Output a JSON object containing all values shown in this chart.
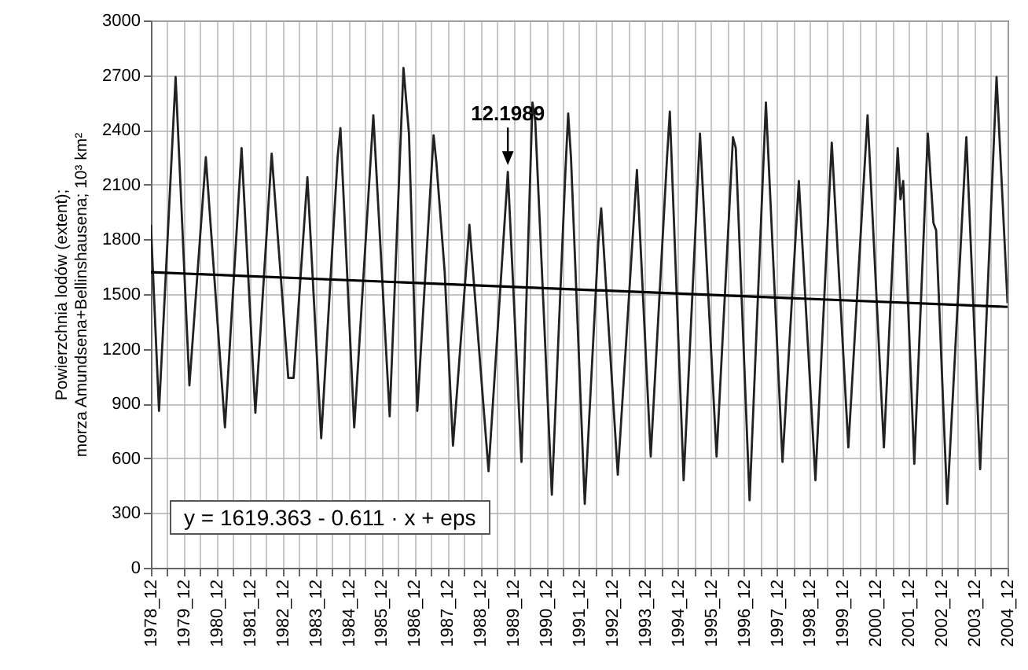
{
  "chart_data": {
    "type": "line",
    "ylabel": "Powierzchnia lodów (extent);\nmorza Amundsena+Bellinshausena; 10³ km²",
    "xlim": [
      "1978-12",
      "2004-12"
    ],
    "xticks": [
      {
        "value": "1978-12",
        "label": "1978_12"
      },
      {
        "value": "1979-06",
        "label": null
      },
      {
        "value": "1979-12",
        "label": "1979_12"
      },
      {
        "value": "1980-06",
        "label": null
      },
      {
        "value": "1980-12",
        "label": "1980_12"
      },
      {
        "value": "1981-06",
        "label": null
      },
      {
        "value": "1981-12",
        "label": "1981_12"
      },
      {
        "value": "1982-06",
        "label": null
      },
      {
        "value": "1982-12",
        "label": "1982_12"
      },
      {
        "value": "1983-06",
        "label": null
      },
      {
        "value": "1983-12",
        "label": "1983_12"
      },
      {
        "value": "1984-06",
        "label": null
      },
      {
        "value": "1984-12",
        "label": "1984_12"
      },
      {
        "value": "1985-06",
        "label": null
      },
      {
        "value": "1985-12",
        "label": "1985_12"
      },
      {
        "value": "1986-06",
        "label": null
      },
      {
        "value": "1986-12",
        "label": "1986_12"
      },
      {
        "value": "1987-06",
        "label": null
      },
      {
        "value": "1987-12",
        "label": "1987_12"
      },
      {
        "value": "1988-06",
        "label": null
      },
      {
        "value": "1988-12",
        "label": "1988_12"
      },
      {
        "value": "1989-06",
        "label": null
      },
      {
        "value": "1989-12",
        "label": "1989_12"
      },
      {
        "value": "1990-06",
        "label": null
      },
      {
        "value": "1990-12",
        "label": "1990_12"
      },
      {
        "value": "1991-06",
        "label": null
      },
      {
        "value": "1991-12",
        "label": "1991_12"
      },
      {
        "value": "1992-06",
        "label": null
      },
      {
        "value": "1992-12",
        "label": "1992_12"
      },
      {
        "value": "1993-06",
        "label": null
      },
      {
        "value": "1993-12",
        "label": "1993_12"
      },
      {
        "value": "1994-06",
        "label": null
      },
      {
        "value": "1994-12",
        "label": "1994_12"
      },
      {
        "value": "1995-06",
        "label": null
      },
      {
        "value": "1995-12",
        "label": "1995_12"
      },
      {
        "value": "1996-06",
        "label": null
      },
      {
        "value": "1996-12",
        "label": "1996_12"
      },
      {
        "value": "1997-06",
        "label": null
      },
      {
        "value": "1997-12",
        "label": "1997_12"
      },
      {
        "value": "1998-06",
        "label": null
      },
      {
        "value": "1998-12",
        "label": "1998_12"
      },
      {
        "value": "1999-06",
        "label": null
      },
      {
        "value": "1999-12",
        "label": "1999_12"
      },
      {
        "value": "2000-06",
        "label": null
      },
      {
        "value": "2000-12",
        "label": "2000_12"
      },
      {
        "value": "2001-06",
        "label": null
      },
      {
        "value": "2001-12",
        "label": "2001_12"
      },
      {
        "value": "2002-06",
        "label": null
      },
      {
        "value": "2002-12",
        "label": "2002_12"
      },
      {
        "value": "2003-06",
        "label": null
      },
      {
        "value": "2003-12",
        "label": "2003_12"
      },
      {
        "value": "2004-06",
        "label": null
      },
      {
        "value": "2004-12",
        "label": "2004_12"
      }
    ],
    "ylim": [
      0,
      3000
    ],
    "yticks": [
      0,
      300,
      600,
      900,
      1200,
      1500,
      1800,
      2100,
      2400,
      2700,
      3000
    ],
    "grid": true,
    "series": [
      {
        "color": "#222222",
        "x": [
          "1978-12",
          "1979-03",
          "1979-09",
          "1980-02",
          "1980-08",
          "1981-03",
          "1981-09",
          "1982-02",
          "1982-08",
          "1983-02",
          "1983-04",
          "1983-09",
          "1984-02",
          "1984-08",
          "1984-09",
          "1985-02",
          "1985-09",
          "1986-03",
          "1986-08",
          "1986-10",
          "1987-01",
          "1987-07",
          "1987-08",
          "1987-11",
          "1988-02",
          "1988-08",
          "1989-03",
          "1989-10",
          "1990-03",
          "1990-07",
          "1990-08",
          "1991-02",
          "1991-07",
          "1991-08",
          "1991-09",
          "1992-02",
          "1992-07",
          "1992-08",
          "1993-02",
          "1993-09",
          "1994-02",
          "1994-08",
          "1994-09",
          "1995-02",
          "1995-08",
          "1996-02",
          "1996-08",
          "1996-09",
          "1997-02",
          "1997-08",
          "1998-02",
          "1998-08",
          "1999-02",
          "1999-08",
          "2000-02",
          "2000-09",
          "2001-03",
          "2001-08",
          "2001-09",
          "2001-10",
          "2002-02",
          "2002-07",
          "2002-09",
          "2002-10",
          "2003-02",
          "2003-09",
          "2004-02",
          "2004-08",
          "2004-12"
        ],
        "values": [
          1880,
          860,
          2690,
          1000,
          2250,
          770,
          2300,
          850,
          2270,
          1040,
          1040,
          2140,
          710,
          2250,
          2410,
          770,
          2480,
          830,
          2740,
          2380,
          860,
          2370,
          2220,
          1620,
          670,
          1880,
          530,
          2170,
          580,
          2550,
          2450,
          400,
          2170,
          2490,
          2250,
          350,
          1790,
          1970,
          510,
          2180,
          610,
          2250,
          2500,
          480,
          2380,
          610,
          2360,
          2300,
          370,
          2550,
          580,
          2120,
          480,
          2330,
          660,
          2480,
          660,
          2300,
          2020,
          2120,
          570,
          2380,
          1890,
          1850,
          350,
          2360,
          540,
          2690,
          1450
        ]
      },
      {
        "color": "#000000",
        "x": [
          "1978-12",
          "2004-12"
        ],
        "values": [
          1620,
          1430
        ]
      }
    ],
    "annotations": [
      {
        "text": "12.1989",
        "x": "1989-10",
        "y": 2170
      },
      "y = 1619.363 - 0.611 · x + eps"
    ]
  }
}
